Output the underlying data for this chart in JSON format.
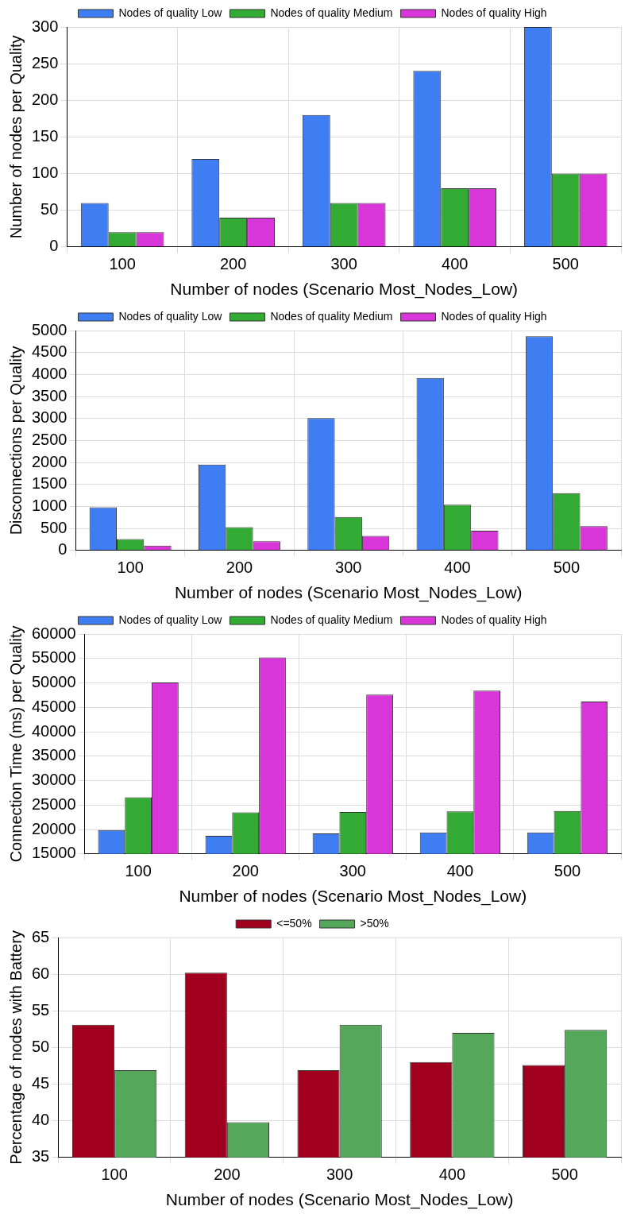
{
  "chart_data": [
    {
      "type": "bar",
      "xlabel": "Number of nodes (Scenario Most_Nodes_Low)",
      "ylabel": "Number of nodes per Quality",
      "categories": [
        "100",
        "200",
        "300",
        "400",
        "500"
      ],
      "series": [
        {
          "name": "Nodes of quality Low",
          "color": "#3f7df3",
          "values": [
            60,
            120,
            180,
            240,
            300
          ]
        },
        {
          "name": "Nodes of quality Medium",
          "color": "#33aa33",
          "values": [
            20,
            40,
            60,
            80,
            100
          ]
        },
        {
          "name": "Nodes of quality High",
          "color": "#d936d9",
          "values": [
            20,
            40,
            60,
            80,
            100
          ]
        }
      ],
      "ylim": [
        0,
        300
      ],
      "yticks": [
        0,
        50,
        100,
        150,
        200,
        250,
        300
      ],
      "grid": true,
      "legend": "top"
    },
    {
      "type": "bar",
      "xlabel": "Number of nodes (Scenario Most_Nodes_Low)",
      "ylabel": "Disconnections per Quality",
      "categories": [
        "100",
        "200",
        "300",
        "400",
        "500"
      ],
      "series": [
        {
          "name": "Nodes of quality Low",
          "color": "#3f7df3",
          "values": [
            980,
            1950,
            3010,
            3920,
            4870
          ]
        },
        {
          "name": "Nodes of quality Medium",
          "color": "#33aa33",
          "values": [
            260,
            530,
            760,
            1040,
            1300
          ]
        },
        {
          "name": "Nodes of quality High",
          "color": "#d936d9",
          "values": [
            110,
            210,
            330,
            450,
            550
          ]
        }
      ],
      "ylim": [
        0,
        5000
      ],
      "yticks": [
        0,
        500,
        1000,
        1500,
        2000,
        2500,
        3000,
        3500,
        4000,
        4500,
        5000
      ],
      "grid": true,
      "legend": "top"
    },
    {
      "type": "bar",
      "xlabel": "Number of nodes (Scenario Most_Nodes_Low)",
      "ylabel": "Connection Time (ms) per Quality",
      "categories": [
        "100",
        "200",
        "300",
        "400",
        "500"
      ],
      "series": [
        {
          "name": "Nodes of quality Low",
          "color": "#3f7df3",
          "values": [
            19900,
            18700,
            19200,
            19400,
            19400
          ]
        },
        {
          "name": "Nodes of quality Medium",
          "color": "#33aa33",
          "values": [
            26600,
            23500,
            23600,
            23700,
            23800
          ]
        },
        {
          "name": "Nodes of quality High",
          "color": "#d936d9",
          "values": [
            50100,
            55200,
            47600,
            48400,
            46200
          ]
        }
      ],
      "ylim": [
        15000,
        60000
      ],
      "yticks": [
        15000,
        20000,
        25000,
        30000,
        35000,
        40000,
        45000,
        50000,
        55000,
        60000
      ],
      "grid": true,
      "legend": "top"
    },
    {
      "type": "bar",
      "xlabel": "Number of nodes (Scenario Most_Nodes_Low)",
      "ylabel": "Percentage of nodes with Battery",
      "categories": [
        "100",
        "200",
        "300",
        "400",
        "500"
      ],
      "series": [
        {
          "name": "<=50%",
          "color": "#a0001e",
          "values": [
            53.1,
            60.2,
            46.9,
            48,
            47.6
          ]
        },
        {
          "name": ">50%",
          "color": "#55a85a",
          "values": [
            46.9,
            39.8,
            53.1,
            52,
            52.4
          ]
        }
      ],
      "ylim": [
        35,
        65
      ],
      "yticks": [
        35,
        40,
        45,
        50,
        55,
        60,
        65
      ],
      "grid": true,
      "legend": "top"
    }
  ]
}
